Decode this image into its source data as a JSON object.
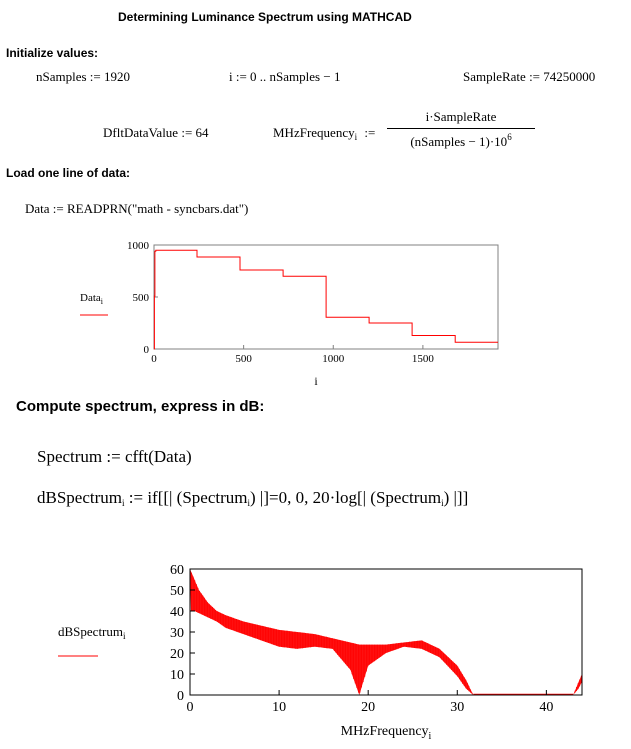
{
  "title": "Determining Luminance Spectrum using MATHCAD",
  "sections": {
    "init": "Initialize values:",
    "load": "Load one line of data:",
    "compute": "Compute spectrum, express in dB:"
  },
  "equations": {
    "nsamples": "nSamples := 1920",
    "i_range": "i := 0 .. nSamples − 1",
    "samplerate": "SampleRate := 74250000",
    "dflt": "DfltDataValue := 64",
    "mhz_lhs": "MHzFrequency",
    "mhz_sub": "i",
    "mhz_assign": ":=",
    "mhz_num": "i·SampleRate",
    "mhz_den": "(nSamples − 1)·10",
    "mhz_den_exp": "6",
    "data_read": "Data := READPRN(\"math - syncbars.dat\")",
    "spectrum": "Spectrum := cfft(Data)",
    "dbspec_lhs": "dBSpectrum",
    "dbspec_sub": "i",
    "dbspec_rhs": ":= if[[| (Spectrum",
    "dbspec_rhs_sub": "i",
    "dbspec_rhs2": ") |]=0, 0, 20·log[| (Spectrum",
    "dbspec_rhs2_sub": "i",
    "dbspec_rhs3": ") |]]"
  },
  "chart_data": [
    {
      "type": "line",
      "legend": "Data",
      "legend_sub": "i",
      "xlabel": "i",
      "xlim": [
        0,
        1919
      ],
      "ylim": [
        0,
        1000
      ],
      "xticks": [
        0,
        500,
        1000,
        1500
      ],
      "yticks": [
        0,
        500,
        1000
      ],
      "color": "#ff0000",
      "series": [
        {
          "x": [
            0,
            2,
            2,
            5,
            5,
            10,
            10,
            240,
            240,
            480,
            480,
            720,
            720,
            960,
            960,
            1200,
            1200,
            1440,
            1440,
            1680,
            1680,
            1919
          ],
          "y": [
            0,
            0,
            510,
            510,
            940,
            940,
            950,
            950,
            885,
            885,
            760,
            760,
            700,
            700,
            305,
            305,
            250,
            250,
            130,
            130,
            65,
            65
          ]
        }
      ]
    },
    {
      "type": "line",
      "legend": "dBSpectrum",
      "legend_sub": "i",
      "xlabel": "MHzFrequency",
      "xlabel_sub": "i",
      "xlim": [
        0,
        44
      ],
      "ylim": [
        0,
        60
      ],
      "xticks": [
        0,
        10,
        20,
        30,
        40
      ],
      "yticks": [
        0,
        10,
        20,
        30,
        40,
        50,
        60
      ],
      "color": "#ff0000",
      "envelope": {
        "x": [
          0,
          0.5,
          1,
          2,
          3,
          4,
          6,
          8,
          10,
          12,
          14,
          16,
          18,
          19,
          20,
          22,
          24,
          26,
          28,
          30,
          31,
          31.8,
          32,
          43,
          43.6,
          44.2
        ],
        "upper": [
          60,
          55,
          50,
          44,
          40,
          38,
          35,
          33,
          31,
          30,
          29,
          27,
          25,
          24,
          24,
          24,
          25,
          26,
          22,
          14,
          7,
          0,
          0,
          0,
          6,
          12
        ],
        "lower": [
          40,
          40,
          39,
          37,
          35,
          32,
          29,
          26,
          23,
          22,
          23,
          22,
          12,
          0,
          14,
          20,
          23,
          22,
          18,
          9,
          3,
          0,
          0,
          0,
          3,
          8
        ]
      }
    }
  ]
}
